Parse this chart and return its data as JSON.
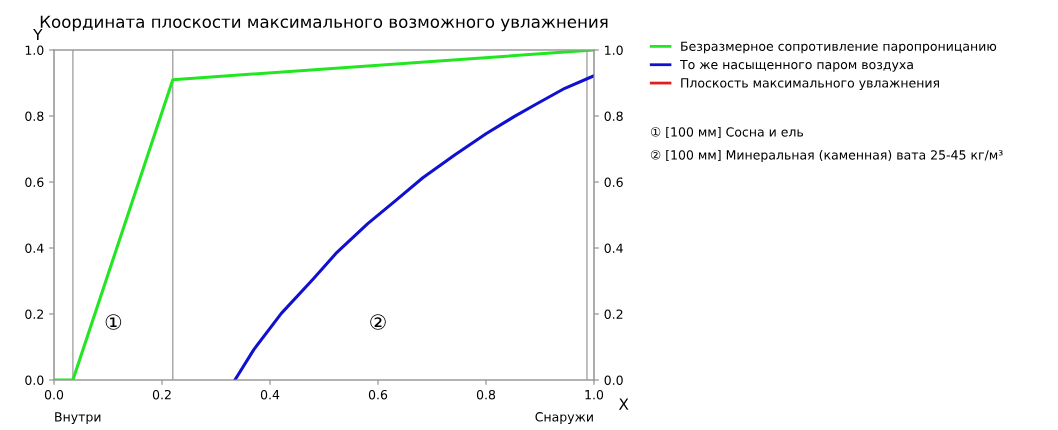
{
  "chart_data": {
    "type": "line",
    "title": "Координата плоскости максимального возможного увлажнения",
    "xlabel": "X",
    "ylabel": "Y",
    "xlim": [
      0,
      1
    ],
    "xticks": [
      {
        "value": 0,
        "label": "0.0"
      },
      0.2,
      0.4,
      0.6,
      0.8,
      {
        "value": 1,
        "label": "1.0"
      }
    ],
    "ylim": [
      0,
      1
    ],
    "yticks": [
      {
        "value": 0,
        "label": "0.0"
      },
      0.2,
      0.4,
      0.6,
      0.8,
      {
        "value": 1,
        "label": "1.0"
      }
    ],
    "y2lim": [
      0,
      1
    ],
    "y2ticks": [
      {
        "value": 0,
        "label": "0.0"
      },
      0.2,
      0.4,
      0.6,
      0.8,
      {
        "value": 1,
        "label": "1.0"
      }
    ],
    "grid": false,
    "legend": "right",
    "marker": "none",
    "line_style": "solid",
    "series": [
      {
        "name": "Безразмерное сопротивление паропроницанию",
        "color": "#22e622",
        "x": [
          0,
          0.035,
          0.22,
          1.0
        ],
        "values": [
          0,
          0,
          0.91,
          1.0
        ]
      },
      {
        "name": "То же насыщенного паром воздуха",
        "color": "#1010d0",
        "x": [
          0.335,
          0.37,
          0.421,
          0.48,
          0.524,
          0.581,
          0.632,
          0.683,
          0.742,
          0.8,
          0.852,
          0.895,
          0.946,
          1.0
        ],
        "values": [
          0,
          0.092,
          0.202,
          0.306,
          0.387,
          0.474,
          0.543,
          0.613,
          0.682,
          0.746,
          0.798,
          0.838,
          0.884,
          0.922
        ]
      },
      {
        "name": "Плоскость максимального увлажнения",
        "color": "#e02020"
      }
    ],
    "ref_lines": [
      {
        "axis": "x",
        "value": 0.035,
        "color": "#999999"
      },
      {
        "axis": "x",
        "value": 0.22,
        "color": "#999999"
      },
      {
        "axis": "x",
        "value": 0.987,
        "color": "#999999"
      }
    ],
    "annotations": [
      "Внутри",
      "Снаружи",
      "① [100 мм] Сосна и ель",
      "② [100 мм] Минеральная (каменная) вата 25-45 кг/м³",
      "①",
      "②"
    ]
  }
}
